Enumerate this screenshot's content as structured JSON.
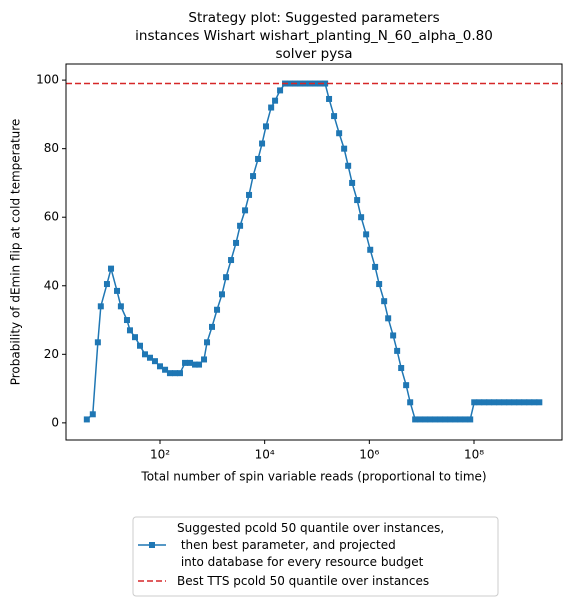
{
  "chart_data": {
    "type": "line",
    "title": [
      "Strategy plot: Suggested parameters",
      "instances Wishart wishart_planting_N_60_alpha_0.80",
      "solver pysa"
    ],
    "xlabel": "Total number of spin variable reads (proportional to time)",
    "ylabel": "Probability of dEmin flip at cold temperature",
    "xscale": "log",
    "xlim": [
      1.6,
      4800000000
    ],
    "ylim": [
      -5,
      104.7
    ],
    "xticks": [
      {
        "value": 100,
        "label": "10²"
      },
      {
        "value": 10000,
        "label": "10⁴"
      },
      {
        "value": 1000000,
        "label": "10⁶"
      },
      {
        "value": 100000000,
        "label": "10⁸"
      }
    ],
    "yticks": [
      0,
      20,
      40,
      60,
      80,
      100
    ],
    "legend": "lower center",
    "series": [
      {
        "name": "Suggested pcold 50 quantile over instances,\n  then best parameter, and projected\n  into database for every resource budget",
        "color": "#1f77b4",
        "x": [
          4.0,
          5.2,
          6.5,
          7.4,
          9.7,
          11.6,
          15.1,
          17.9,
          23.4,
          26.7,
          33.3,
          41.5,
          51.7,
          64.4,
          80.2,
          100,
          125,
          155,
          194,
          241,
          301,
          375,
          467,
          557,
          694,
          792,
          986,
          1230,
          1530,
          1830,
          2280,
          2840,
          3390,
          4220,
          5030,
          6000,
          7480,
          8920,
          10600,
          13300,
          15800,
          19700,
          24500,
          30600,
          38100,
          47500,
          59200,
          73800,
          92000,
          115000,
          143000,
          170000,
          212000,
          265000,
          330000,
          394000,
          469000,
          585000,
          697000,
          869000,
          1040000,
          1290000,
          1540000,
          1920000,
          2290000,
          2850000,
          3400000,
          4060000,
          5050000,
          6030000,
          7510000,
          9360000,
          11700000,
          14500000,
          18100000,
          22600000,
          28100000,
          35100000,
          43700000,
          54500000,
          67900000,
          84600000,
          101000000,
          126000000,
          157000000,
          195000000,
          243000000,
          303000000,
          378000000,
          471000000,
          587000000,
          731000000,
          912000000,
          1140000000,
          1420000000,
          1770000000
        ],
        "values": [
          1,
          2.5,
          23.5,
          34,
          40.5,
          45,
          38.5,
          34,
          30,
          27,
          25,
          22.5,
          20,
          19,
          18,
          16.5,
          15.5,
          14.5,
          14.5,
          14.5,
          17.5,
          17.5,
          17,
          17,
          18.5,
          23.5,
          28,
          33,
          37.5,
          42.5,
          47.5,
          52.5,
          57.5,
          62,
          66.5,
          72,
          77,
          81.5,
          86.5,
          92,
          94,
          97,
          99,
          99,
          99,
          99,
          99,
          99,
          99,
          99,
          99,
          94.5,
          89.5,
          84.5,
          80,
          75,
          70,
          65,
          60,
          55,
          50.5,
          45.5,
          40.5,
          35.5,
          30.5,
          25.5,
          21,
          16,
          11,
          6,
          1,
          1,
          1,
          1,
          1,
          1,
          1,
          1,
          1,
          1,
          1,
          1,
          6,
          6,
          6,
          6,
          6,
          6,
          6,
          6,
          6,
          6,
          6,
          6,
          6,
          6
        ]
      },
      {
        "name": "Best TTS pcold 50 quantile over instances",
        "color": "#d62728",
        "hline": 99
      }
    ]
  }
}
